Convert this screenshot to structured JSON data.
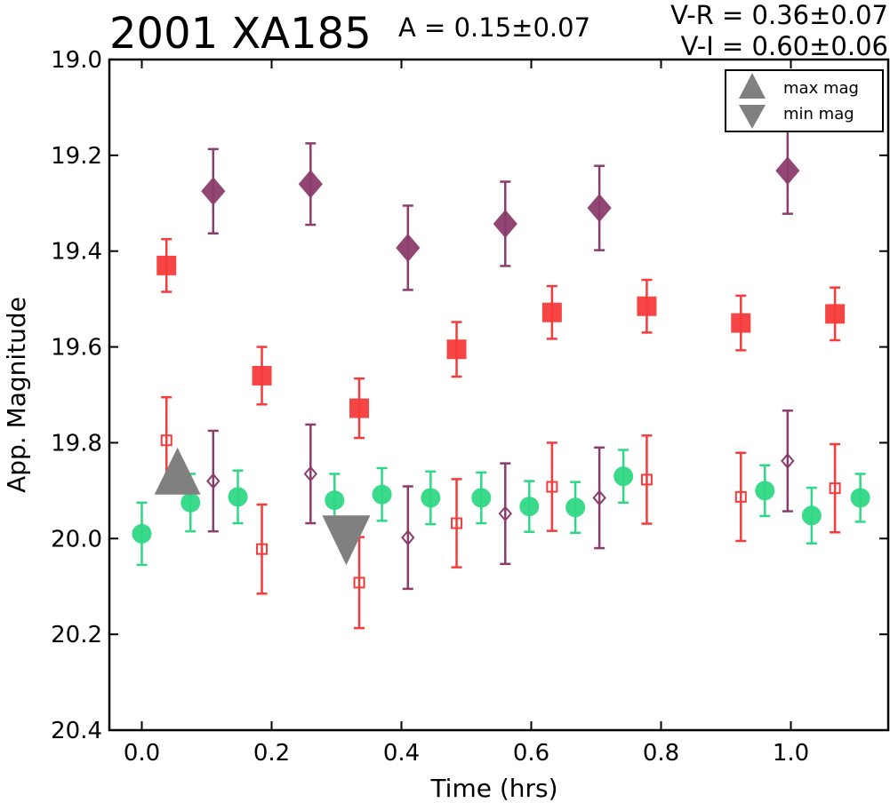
{
  "chart_data": {
    "type": "scatter",
    "title": "2001 XA185",
    "amplitude_text": "A  = 0.15±0.07",
    "color_indices": [
      "V-R = 0.36±0.07",
      "V-I  = 0.60±0.06"
    ],
    "xlabel": "Time (hrs)",
    "ylabel": "App. Magnitude",
    "xlim": [
      -0.05,
      1.15
    ],
    "ylim": [
      20.4,
      19.0
    ],
    "y_inverted": true,
    "x_ticks": [
      0.0,
      0.2,
      0.4,
      0.6,
      0.8,
      1.0
    ],
    "x_tick_labels": [
      "0.0",
      "0.2",
      "0.4",
      "0.6",
      "0.8",
      "1.0"
    ],
    "y_ticks": [
      19.0,
      19.2,
      19.4,
      19.6,
      19.8,
      20.0,
      20.2,
      20.4
    ],
    "y_tick_labels": [
      "19.0",
      "19.2",
      "19.4",
      "19.6",
      "19.8",
      "20.0",
      "20.2",
      "20.4"
    ],
    "grid": false,
    "legend": {
      "position": "top-right",
      "entries": [
        {
          "label": "max mag",
          "marker": "triangle-up"
        },
        {
          "label": "min mag",
          "marker": "triangle-down"
        }
      ]
    },
    "extrema": [
      {
        "kind": "max",
        "x": 0.055,
        "y": 19.86,
        "color": "#808080"
      },
      {
        "kind": "min",
        "x": 0.315,
        "y": 20.0,
        "color": "#808080"
      }
    ],
    "series": [
      {
        "marker": "diamond-filled",
        "color": "#8c3c6b",
        "points": [
          {
            "x": 0.11,
            "y": 19.275,
            "err": 0.088
          },
          {
            "x": 0.26,
            "y": 19.26,
            "err": 0.085
          },
          {
            "x": 0.41,
            "y": 19.393,
            "err": 0.088
          },
          {
            "x": 0.56,
            "y": 19.343,
            "err": 0.088
          },
          {
            "x": 0.705,
            "y": 19.31,
            "err": 0.088
          },
          {
            "x": 0.995,
            "y": 19.232,
            "err": 0.09
          }
        ]
      },
      {
        "marker": "square-filled",
        "color": "#f53b3b",
        "points": [
          {
            "x": 0.038,
            "y": 19.43,
            "err": 0.055
          },
          {
            "x": 0.185,
            "y": 19.66,
            "err": 0.06
          },
          {
            "x": 0.335,
            "y": 19.728,
            "err": 0.062
          },
          {
            "x": 0.485,
            "y": 19.605,
            "err": 0.057
          },
          {
            "x": 0.632,
            "y": 19.528,
            "err": 0.055
          },
          {
            "x": 0.778,
            "y": 19.515,
            "err": 0.055
          },
          {
            "x": 0.923,
            "y": 19.55,
            "err": 0.057
          },
          {
            "x": 1.068,
            "y": 19.531,
            "err": 0.055
          }
        ]
      },
      {
        "marker": "circle-filled",
        "color": "#2fd884",
        "points": [
          {
            "x": 0.0,
            "y": 19.99,
            "err": 0.065
          },
          {
            "x": 0.075,
            "y": 19.925,
            "err": 0.06
          },
          {
            "x": 0.148,
            "y": 19.913,
            "err": 0.055
          },
          {
            "x": 0.297,
            "y": 19.92,
            "err": 0.055
          },
          {
            "x": 0.37,
            "y": 19.908,
            "err": 0.055
          },
          {
            "x": 0.445,
            "y": 19.915,
            "err": 0.055
          },
          {
            "x": 0.523,
            "y": 19.915,
            "err": 0.053
          },
          {
            "x": 0.597,
            "y": 19.933,
            "err": 0.053
          },
          {
            "x": 0.668,
            "y": 19.935,
            "err": 0.053
          },
          {
            "x": 0.742,
            "y": 19.87,
            "err": 0.055
          },
          {
            "x": 0.96,
            "y": 19.9,
            "err": 0.053
          },
          {
            "x": 1.032,
            "y": 19.952,
            "err": 0.058
          },
          {
            "x": 1.107,
            "y": 19.915,
            "err": 0.05
          }
        ]
      },
      {
        "marker": "square-open",
        "color": "#f53b3b",
        "points": [
          {
            "x": 0.038,
            "y": 19.795,
            "err": 0.09
          },
          {
            "x": 0.185,
            "y": 20.022,
            "err": 0.093
          },
          {
            "x": 0.335,
            "y": 20.092,
            "err": 0.095
          },
          {
            "x": 0.485,
            "y": 19.968,
            "err": 0.092
          },
          {
            "x": 0.632,
            "y": 19.892,
            "err": 0.092
          },
          {
            "x": 0.778,
            "y": 19.877,
            "err": 0.092
          },
          {
            "x": 0.923,
            "y": 19.913,
            "err": 0.092
          },
          {
            "x": 1.068,
            "y": 19.895,
            "err": 0.092
          }
        ]
      },
      {
        "marker": "diamond-open",
        "color": "#8c3c6b",
        "points": [
          {
            "x": 0.11,
            "y": 19.88,
            "err": 0.105
          },
          {
            "x": 0.26,
            "y": 19.865,
            "err": 0.103
          },
          {
            "x": 0.41,
            "y": 19.998,
            "err": 0.107
          },
          {
            "x": 0.56,
            "y": 19.948,
            "err": 0.105
          },
          {
            "x": 0.705,
            "y": 19.915,
            "err": 0.105
          },
          {
            "x": 0.995,
            "y": 19.838,
            "err": 0.105
          }
        ]
      }
    ]
  }
}
